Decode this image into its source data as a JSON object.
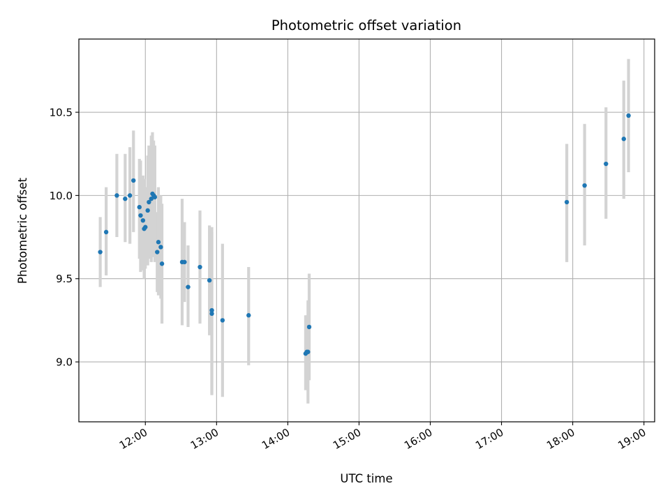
{
  "chart_data": {
    "type": "scatter",
    "title": "Photometric offset variation",
    "xlabel": "UTC time",
    "ylabel": "Photometric offset",
    "x_format": "HH:MM",
    "xlim": [
      "11:04",
      "19:09"
    ],
    "ylim": [
      8.64,
      10.94
    ],
    "x_ticks": [
      "12:00",
      "13:00",
      "14:00",
      "15:00",
      "16:00",
      "17:00",
      "18:00",
      "19:00"
    ],
    "y_ticks": [
      "9.0",
      "9.5",
      "10.0",
      "10.5"
    ],
    "grid": true,
    "colors": {
      "point": "#1f77b4",
      "errorbar": "#d3d3d3",
      "grid": "#b0b0b0"
    },
    "series": [
      {
        "points": [
          {
            "x": "11:22",
            "y": 9.66,
            "lo": 9.45,
            "hi": 9.87
          },
          {
            "x": "11:27",
            "y": 9.78,
            "lo": 9.52,
            "hi": 10.05
          },
          {
            "x": "11:36",
            "y": 10.0,
            "lo": 9.75,
            "hi": 10.25
          },
          {
            "x": "11:43",
            "y": 9.98,
            "lo": 9.72,
            "hi": 10.25
          },
          {
            "x": "11:47",
            "y": 10.0,
            "lo": 9.71,
            "hi": 10.29
          },
          {
            "x": "11:50",
            "y": 10.09,
            "lo": 9.78,
            "hi": 10.39
          },
          {
            "x": "11:55",
            "y": 9.93,
            "lo": 9.62,
            "hi": 10.22
          },
          {
            "x": "11:56",
            "y": 9.88,
            "lo": 9.54,
            "hi": 10.21
          },
          {
            "x": "11:58",
            "y": 9.85,
            "lo": 9.55,
            "hi": 10.12
          },
          {
            "x": "11:59",
            "y": 9.8,
            "lo": 9.5,
            "hi": 10.1
          },
          {
            "x": "12:00",
            "y": 9.81,
            "lo": 9.56,
            "hi": 10.05
          },
          {
            "x": "12:02",
            "y": 9.91,
            "lo": 9.58,
            "hi": 10.24
          },
          {
            "x": "12:03",
            "y": 9.96,
            "lo": 9.62,
            "hi": 10.3
          },
          {
            "x": "12:05",
            "y": 9.98,
            "lo": 9.6,
            "hi": 10.36
          },
          {
            "x": "12:06",
            "y": 10.01,
            "lo": 9.63,
            "hi": 10.38
          },
          {
            "x": "12:07",
            "y": 10.0,
            "lo": 9.68,
            "hi": 10.33
          },
          {
            "x": "12:08",
            "y": 9.99,
            "lo": 9.6,
            "hi": 10.3
          },
          {
            "x": "12:10",
            "y": 9.66,
            "lo": 9.42,
            "hi": 9.9
          },
          {
            "x": "12:11",
            "y": 9.72,
            "lo": 9.4,
            "hi": 10.05
          },
          {
            "x": "12:13",
            "y": 9.69,
            "lo": 9.38,
            "hi": 10.0
          },
          {
            "x": "12:14",
            "y": 9.59,
            "lo": 9.23,
            "hi": 9.95
          },
          {
            "x": "12:31",
            "y": 9.6,
            "lo": 9.22,
            "hi": 9.98
          },
          {
            "x": "12:33",
            "y": 9.6,
            "lo": 9.36,
            "hi": 9.84
          },
          {
            "x": "12:36",
            "y": 9.45,
            "lo": 9.21,
            "hi": 9.7
          },
          {
            "x": "12:46",
            "y": 9.57,
            "lo": 9.23,
            "hi": 9.91
          },
          {
            "x": "12:54",
            "y": 9.49,
            "lo": 9.16,
            "hi": 9.82
          },
          {
            "x": "12:56",
            "y": 9.29,
            "lo": 8.8,
            "hi": 9.78
          },
          {
            "x": "12:56",
            "y": 9.31,
            "lo": 8.81,
            "hi": 9.81
          },
          {
            "x": "13:05",
            "y": 9.25,
            "lo": 8.79,
            "hi": 9.71
          },
          {
            "x": "13:27",
            "y": 9.28,
            "lo": 8.98,
            "hi": 9.57
          },
          {
            "x": "14:15",
            "y": 9.05,
            "lo": 8.83,
            "hi": 9.28
          },
          {
            "x": "14:16",
            "y": 9.06,
            "lo": 8.84,
            "hi": 9.28
          },
          {
            "x": "14:17",
            "y": 9.06,
            "lo": 8.75,
            "hi": 9.37
          },
          {
            "x": "14:18",
            "y": 9.21,
            "lo": 8.89,
            "hi": 9.53
          },
          {
            "x": "17:55",
            "y": 9.96,
            "lo": 9.6,
            "hi": 10.31
          },
          {
            "x": "18:10",
            "y": 10.06,
            "lo": 9.7,
            "hi": 10.43
          },
          {
            "x": "18:28",
            "y": 10.19,
            "lo": 9.86,
            "hi": 10.53
          },
          {
            "x": "18:43",
            "y": 10.34,
            "lo": 9.98,
            "hi": 10.69
          },
          {
            "x": "18:47",
            "y": 10.48,
            "lo": 10.14,
            "hi": 10.82
          }
        ]
      }
    ]
  }
}
